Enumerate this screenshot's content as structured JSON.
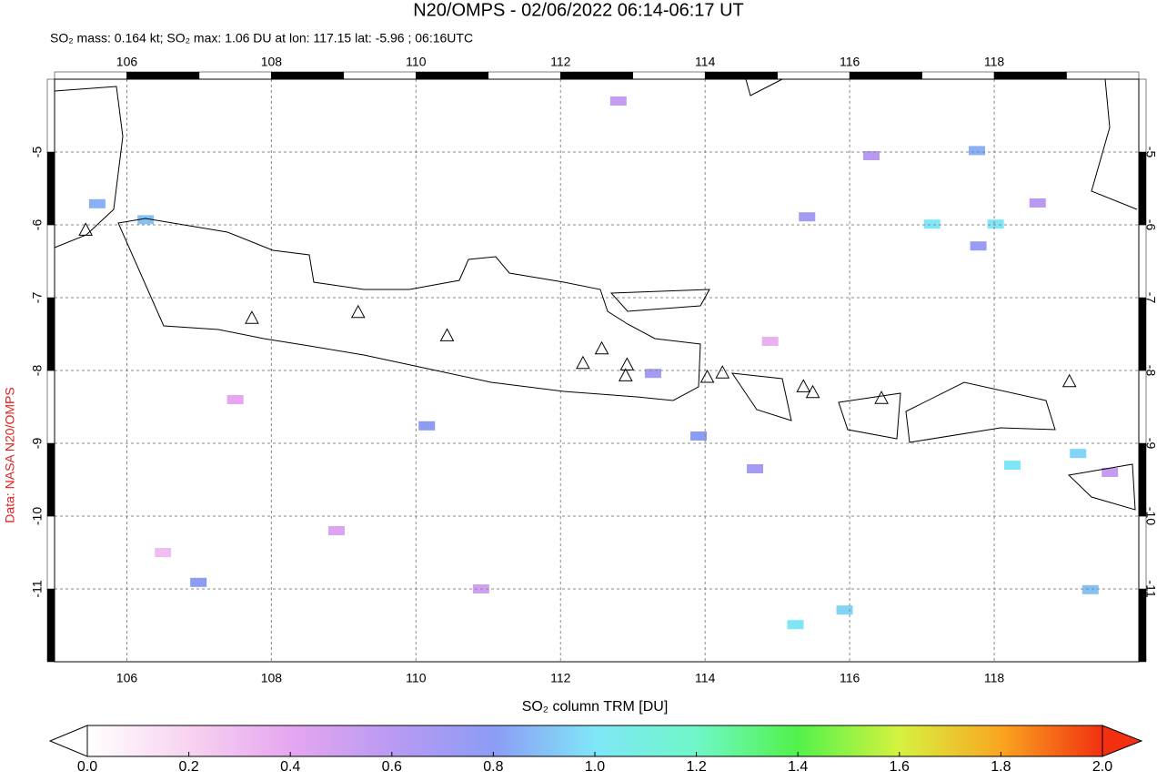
{
  "chart_data": {
    "type": "map",
    "title": "N20/OMPS - 02/06/2022 06:14-06:17 UT",
    "subtitle": "SO₂ mass: 0.164 kt; SO₂ max: 1.06 DU at lon: 117.15 lat: -5.96 ; 06:16UTC",
    "credit": "Data: NASA N20/OMPS",
    "xlim": [
      105,
      120
    ],
    "ylim": [
      -12,
      -4
    ],
    "xticks": [
      106,
      108,
      110,
      112,
      114,
      116,
      118
    ],
    "yticks": [
      -5,
      -6,
      -7,
      -8,
      -9,
      -10,
      -11
    ],
    "grid": true,
    "cells": {
      "lon": [
        117.14,
        118.02,
        117.76,
        119.16,
        118.25,
        119.33,
        115.25,
        115.93,
        113.28,
        115.41,
        117.78,
        110.15,
        113.91,
        114.69,
        106.99,
        106.26,
        105.59,
        116.3,
        112.8,
        108.9,
        107.5,
        110.9,
        114.9,
        118.6,
        119.6,
        106.5
      ],
      "lat": [
        -5.99,
        -5.99,
        -4.98,
        -9.14,
        -9.3,
        -11.01,
        -11.49,
        -11.29,
        -8.04,
        -5.89,
        -6.29,
        -8.76,
        -8.9,
        -9.35,
        -10.91,
        -5.93,
        -5.71,
        -5.05,
        -4.3,
        -10.2,
        -8.4,
        -11.0,
        -7.6,
        -5.7,
        -9.4,
        -10.5
      ],
      "values": [
        1.0,
        1.0,
        0.85,
        0.95,
        1.0,
        0.9,
        1.0,
        0.95,
        0.7,
        0.7,
        0.75,
        0.8,
        0.8,
        0.7,
        0.8,
        0.9,
        0.85,
        0.6,
        0.55,
        0.45,
        0.4,
        0.5,
        0.35,
        0.6,
        0.55,
        0.3
      ]
    },
    "volcanoes": {
      "lon": [
        105.43,
        107.73,
        109.2,
        110.43,
        112.31,
        112.57,
        112.92,
        112.9,
        114.03,
        114.24,
        115.36,
        115.49,
        116.44,
        119.04
      ],
      "lat": [
        -6.08,
        -7.29,
        -7.21,
        -7.53,
        -7.91,
        -7.71,
        -7.93,
        -8.08,
        -8.1,
        -8.04,
        -8.23,
        -8.31,
        -8.39,
        -8.16
      ]
    },
    "colorbar": {
      "label": "SO₂ column TRM [DU]",
      "lim": [
        0,
        2
      ],
      "ticks": [
        {
          "value": 0,
          "label": "0.0"
        },
        {
          "value": 0.2,
          "label": "0.2"
        },
        {
          "value": 0.4,
          "label": "0.4"
        },
        {
          "value": 0.6,
          "label": "0.6"
        },
        {
          "value": 0.8,
          "label": "0.8"
        },
        {
          "value": 1,
          "label": "1.0"
        },
        {
          "value": 1.2,
          "label": "1.2"
        },
        {
          "value": 1.4,
          "label": "1.4"
        },
        {
          "value": 1.6,
          "label": "1.6"
        },
        {
          "value": 1.8,
          "label": "1.8"
        },
        {
          "value": 2,
          "label": "2.0"
        }
      ],
      "colors": [
        "#ffffff",
        "#f7d3f0",
        "#e6a6f0",
        "#b99af2",
        "#8c9cf5",
        "#7fe6f7",
        "#6ff7c8",
        "#52f24a",
        "#d6f240",
        "#f9a620",
        "#f23010"
      ]
    }
  }
}
